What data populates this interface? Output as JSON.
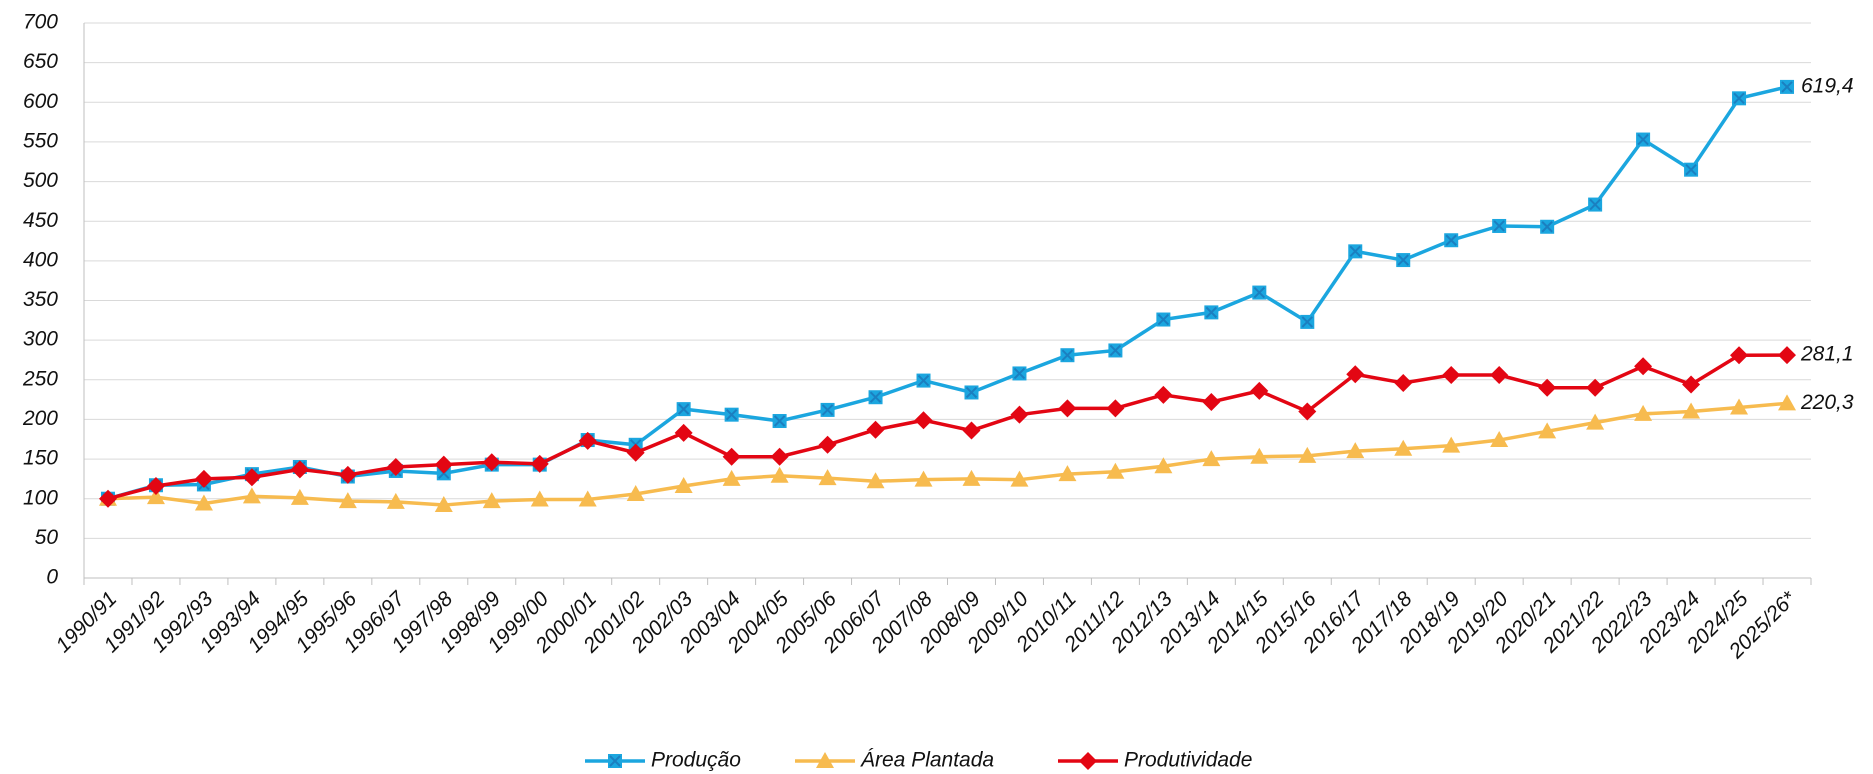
{
  "chart_data": {
    "type": "line",
    "categories": [
      "1990/91",
      "1991/92",
      "1992/93",
      "1993/94",
      "1994/95",
      "1995/96",
      "1996/97",
      "1997/98",
      "1998/99",
      "1999/00",
      "2000/01",
      "2001/02",
      "2002/03",
      "2003/04",
      "2004/05",
      "2005/06",
      "2006/07",
      "2007/08",
      "2008/09",
      "2009/10",
      "2010/11",
      "2011/12",
      "2012/13",
      "2013/14",
      "2014/15",
      "2015/16",
      "2016/17",
      "2017/18",
      "2018/19",
      "2019/20",
      "2020/21",
      "2021/22",
      "2022/23",
      "2023/24",
      "2024/25",
      "2025/26*"
    ],
    "series": [
      {
        "name": "Produção",
        "color": "#1ba6df",
        "marker": "square",
        "values": [
          100,
          117,
          118,
          131,
          140,
          128,
          135,
          132,
          143,
          143,
          174,
          168,
          213,
          206,
          198,
          212,
          228,
          249,
          234,
          258,
          281,
          287,
          326,
          335,
          360,
          323,
          412,
          401,
          426,
          444,
          443,
          471,
          553,
          515,
          605,
          619.4
        ],
        "value_labels": [
          null,
          null,
          null,
          null,
          null,
          null,
          null,
          null,
          null,
          null,
          null,
          null,
          null,
          null,
          null,
          null,
          null,
          null,
          null,
          null,
          null,
          null,
          null,
          null,
          null,
          null,
          null,
          null,
          null,
          null,
          null,
          null,
          null,
          null,
          null,
          "619,4"
        ]
      },
      {
        "name": "Área Plantada",
        "color": "#f7bb4f",
        "marker": "triangle",
        "values": [
          100,
          102,
          94,
          103,
          101,
          97,
          96,
          92,
          97,
          99,
          99,
          106,
          116,
          125,
          129,
          126,
          122,
          124,
          125,
          124,
          131,
          134,
          141,
          150,
          153,
          154,
          160,
          163,
          167,
          174,
          185,
          196,
          207,
          210,
          215,
          220.3
        ],
        "value_labels": [
          null,
          null,
          null,
          null,
          null,
          null,
          null,
          null,
          null,
          null,
          null,
          null,
          null,
          null,
          null,
          null,
          null,
          null,
          null,
          null,
          null,
          null,
          null,
          null,
          null,
          null,
          null,
          null,
          null,
          null,
          null,
          null,
          null,
          null,
          null,
          "220,3"
        ]
      },
      {
        "name": "Produtividade",
        "color": "#e30613",
        "marker": "diamond",
        "values": [
          100,
          116,
          125,
          127,
          137,
          130,
          140,
          143,
          146,
          144,
          173,
          158,
          183,
          153,
          153,
          168,
          187,
          199,
          186,
          206,
          214,
          214,
          231,
          222,
          236,
          210,
          257,
          246,
          256,
          256,
          240,
          240,
          267,
          244,
          281,
          281.1
        ],
        "value_labels": [
          null,
          null,
          null,
          null,
          null,
          null,
          null,
          null,
          null,
          null,
          null,
          null,
          null,
          null,
          null,
          null,
          null,
          null,
          null,
          null,
          null,
          null,
          null,
          null,
          null,
          null,
          null,
          null,
          null,
          null,
          null,
          null,
          null,
          null,
          null,
          "281,1"
        ]
      }
    ],
    "ylim": [
      0,
      700
    ],
    "yticks": [
      0,
      50,
      100,
      150,
      200,
      250,
      300,
      350,
      400,
      450,
      500,
      550,
      600,
      650,
      700
    ],
    "grid": true,
    "legend": "bottom"
  }
}
